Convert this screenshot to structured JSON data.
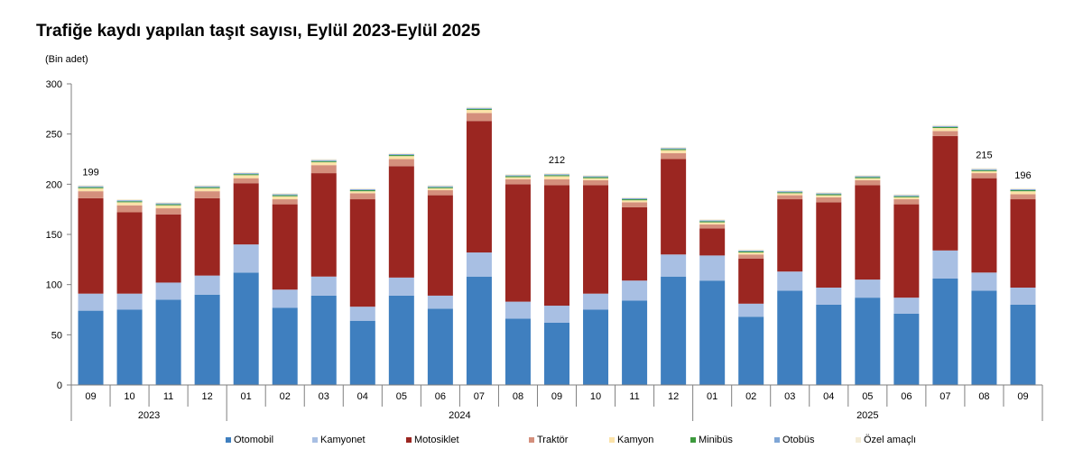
{
  "chart_data": {
    "type": "bar",
    "stacked": true,
    "title": "Trafiğe kaydı yapılan taşıt sayısı, Eylül 2023-Eylül 2025",
    "ylabel": "(Bin adet)",
    "ylim": [
      0,
      300
    ],
    "yticks": [
      0,
      50,
      100,
      150,
      200,
      250,
      300
    ],
    "grid": false,
    "legend_position": "bottom",
    "categories": [
      "09",
      "10",
      "11",
      "12",
      "01",
      "02",
      "03",
      "04",
      "05",
      "06",
      "07",
      "08",
      "09",
      "10",
      "11",
      "12",
      "01",
      "02",
      "03",
      "04",
      "05",
      "06",
      "07",
      "08",
      "09"
    ],
    "year_groups": [
      {
        "label": "2023",
        "start": 0,
        "end": 3
      },
      {
        "label": "2024",
        "start": 4,
        "end": 15
      },
      {
        "label": "2025",
        "start": 16,
        "end": 24
      }
    ],
    "series": [
      {
        "name": "Otomobil",
        "color": "#3f7fbf",
        "values": [
          74,
          75,
          85,
          90,
          112,
          77,
          89,
          64,
          89,
          76,
          108,
          66,
          62,
          75,
          84,
          108,
          104,
          68,
          94,
          80,
          87,
          71,
          106,
          94,
          80
        ]
      },
      {
        "name": "Kamyonet",
        "color": "#a8bfe3",
        "values": [
          17,
          16,
          17,
          19,
          28,
          18,
          19,
          14,
          18,
          13,
          24,
          17,
          17,
          16,
          20,
          22,
          25,
          13,
          19,
          17,
          18,
          16,
          28,
          18,
          17
        ]
      },
      {
        "name": "Motosiklet",
        "color": "#9b2621",
        "values": [
          95,
          81,
          68,
          77,
          61,
          85,
          103,
          107,
          111,
          100,
          131,
          117,
          120,
          108,
          73,
          95,
          27,
          45,
          72,
          85,
          94,
          93,
          114,
          94,
          88
        ]
      },
      {
        "name": "Traktör",
        "color": "#d48f7c",
        "values": [
          7,
          7,
          6,
          7,
          5,
          5,
          8,
          6,
          7,
          5,
          8,
          5,
          6,
          5,
          5,
          6,
          4,
          4,
          4,
          5,
          5,
          5,
          5,
          5,
          5
        ]
      },
      {
        "name": "Kamyon",
        "color": "#fbe2a8",
        "values": [
          3,
          3,
          3,
          3,
          3,
          3,
          3,
          2,
          3,
          2,
          3,
          2,
          3,
          2,
          2,
          3,
          2,
          2,
          2,
          2,
          2,
          2,
          3,
          2,
          3
        ]
      },
      {
        "name": "Minibüs",
        "color": "#3d9a3d",
        "values": [
          1,
          1,
          1,
          1,
          1,
          1,
          1,
          1,
          1,
          1,
          1,
          1,
          1,
          1,
          1,
          1,
          1,
          1,
          1,
          1,
          1,
          1,
          1,
          1,
          1
        ]
      },
      {
        "name": "Otobüs",
        "color": "#7fa6d6",
        "values": [
          1,
          1,
          1,
          1,
          1,
          1,
          1,
          1,
          1,
          1,
          1,
          1,
          1,
          1,
          1,
          1,
          1,
          1,
          1,
          1,
          1,
          1,
          1,
          1,
          1
        ]
      },
      {
        "name": "Özel amaçlı",
        "color": "#f4ecd6",
        "values": [
          1,
          1,
          1,
          1,
          1,
          1,
          1,
          1,
          1,
          1,
          1,
          1,
          1,
          1,
          1,
          1,
          1,
          1,
          1,
          1,
          1,
          1,
          1,
          1,
          1
        ]
      }
    ],
    "annotations": [
      {
        "index": 0,
        "text": "199"
      },
      {
        "index": 12,
        "text": "212"
      },
      {
        "index": 23,
        "text": "215"
      },
      {
        "index": 24,
        "text": "196"
      }
    ]
  }
}
